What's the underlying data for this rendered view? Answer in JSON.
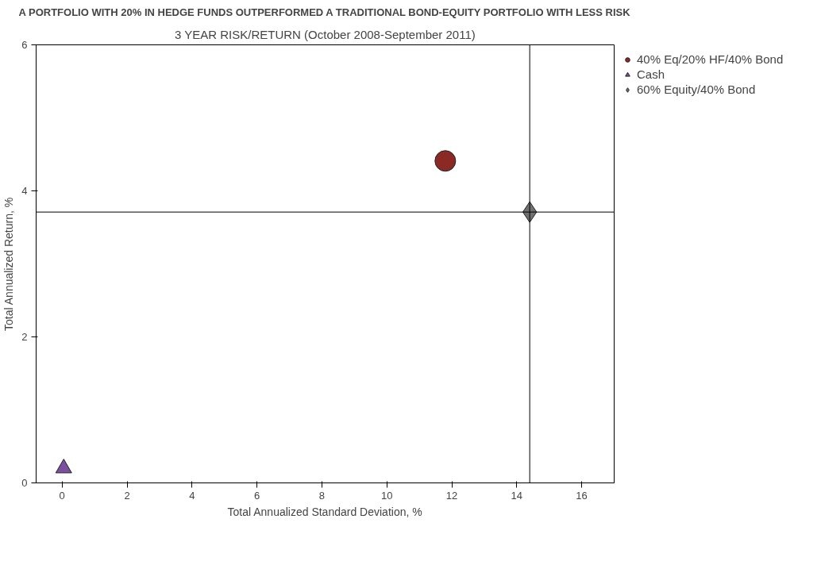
{
  "chart_data": {
    "type": "scatter",
    "title": "A PORTFOLIO WITH 20% IN HEDGE FUNDS OUTPERFORMED A TRADITIONAL BOND-EQUITY PORTFOLIO WITH LESS RISK",
    "subtitle": "3 YEAR RISK/RETURN (October 2008-September 2011)",
    "xlabel": "Total Annualized Standard Deviation, %",
    "ylabel": "Total Annualized Return, %",
    "series": [
      {
        "name": "40% Eq/20% HF/40% Bond",
        "color": "#8b2a25",
        "marker": "circle",
        "x": [
          11.8
        ],
        "values": [
          4.41
        ]
      },
      {
        "name": "Cash",
        "color": "#7b4f9e",
        "marker": "triangle",
        "x": [
          0.05
        ],
        "values": [
          0.2
        ]
      },
      {
        "name": "60% Equity/40% Bond",
        "color": "#707070",
        "marker": "diamond",
        "x": [
          14.4
        ],
        "values": [
          3.71
        ]
      }
    ],
    "ref_lines": [
      {
        "axis": "x",
        "value": 14.4,
        "label": null,
        "color": "#000000"
      },
      {
        "axis": "y",
        "value": 3.71,
        "label": null,
        "color": "#000000"
      }
    ],
    "xlim": [
      -0.8,
      17
    ],
    "ylim": [
      0,
      6
    ],
    "xticks": [
      0,
      2,
      4,
      6,
      8,
      10,
      12,
      14,
      16
    ],
    "yticks": [
      0,
      2,
      4,
      6
    ],
    "grid": false,
    "legend": "top right"
  }
}
